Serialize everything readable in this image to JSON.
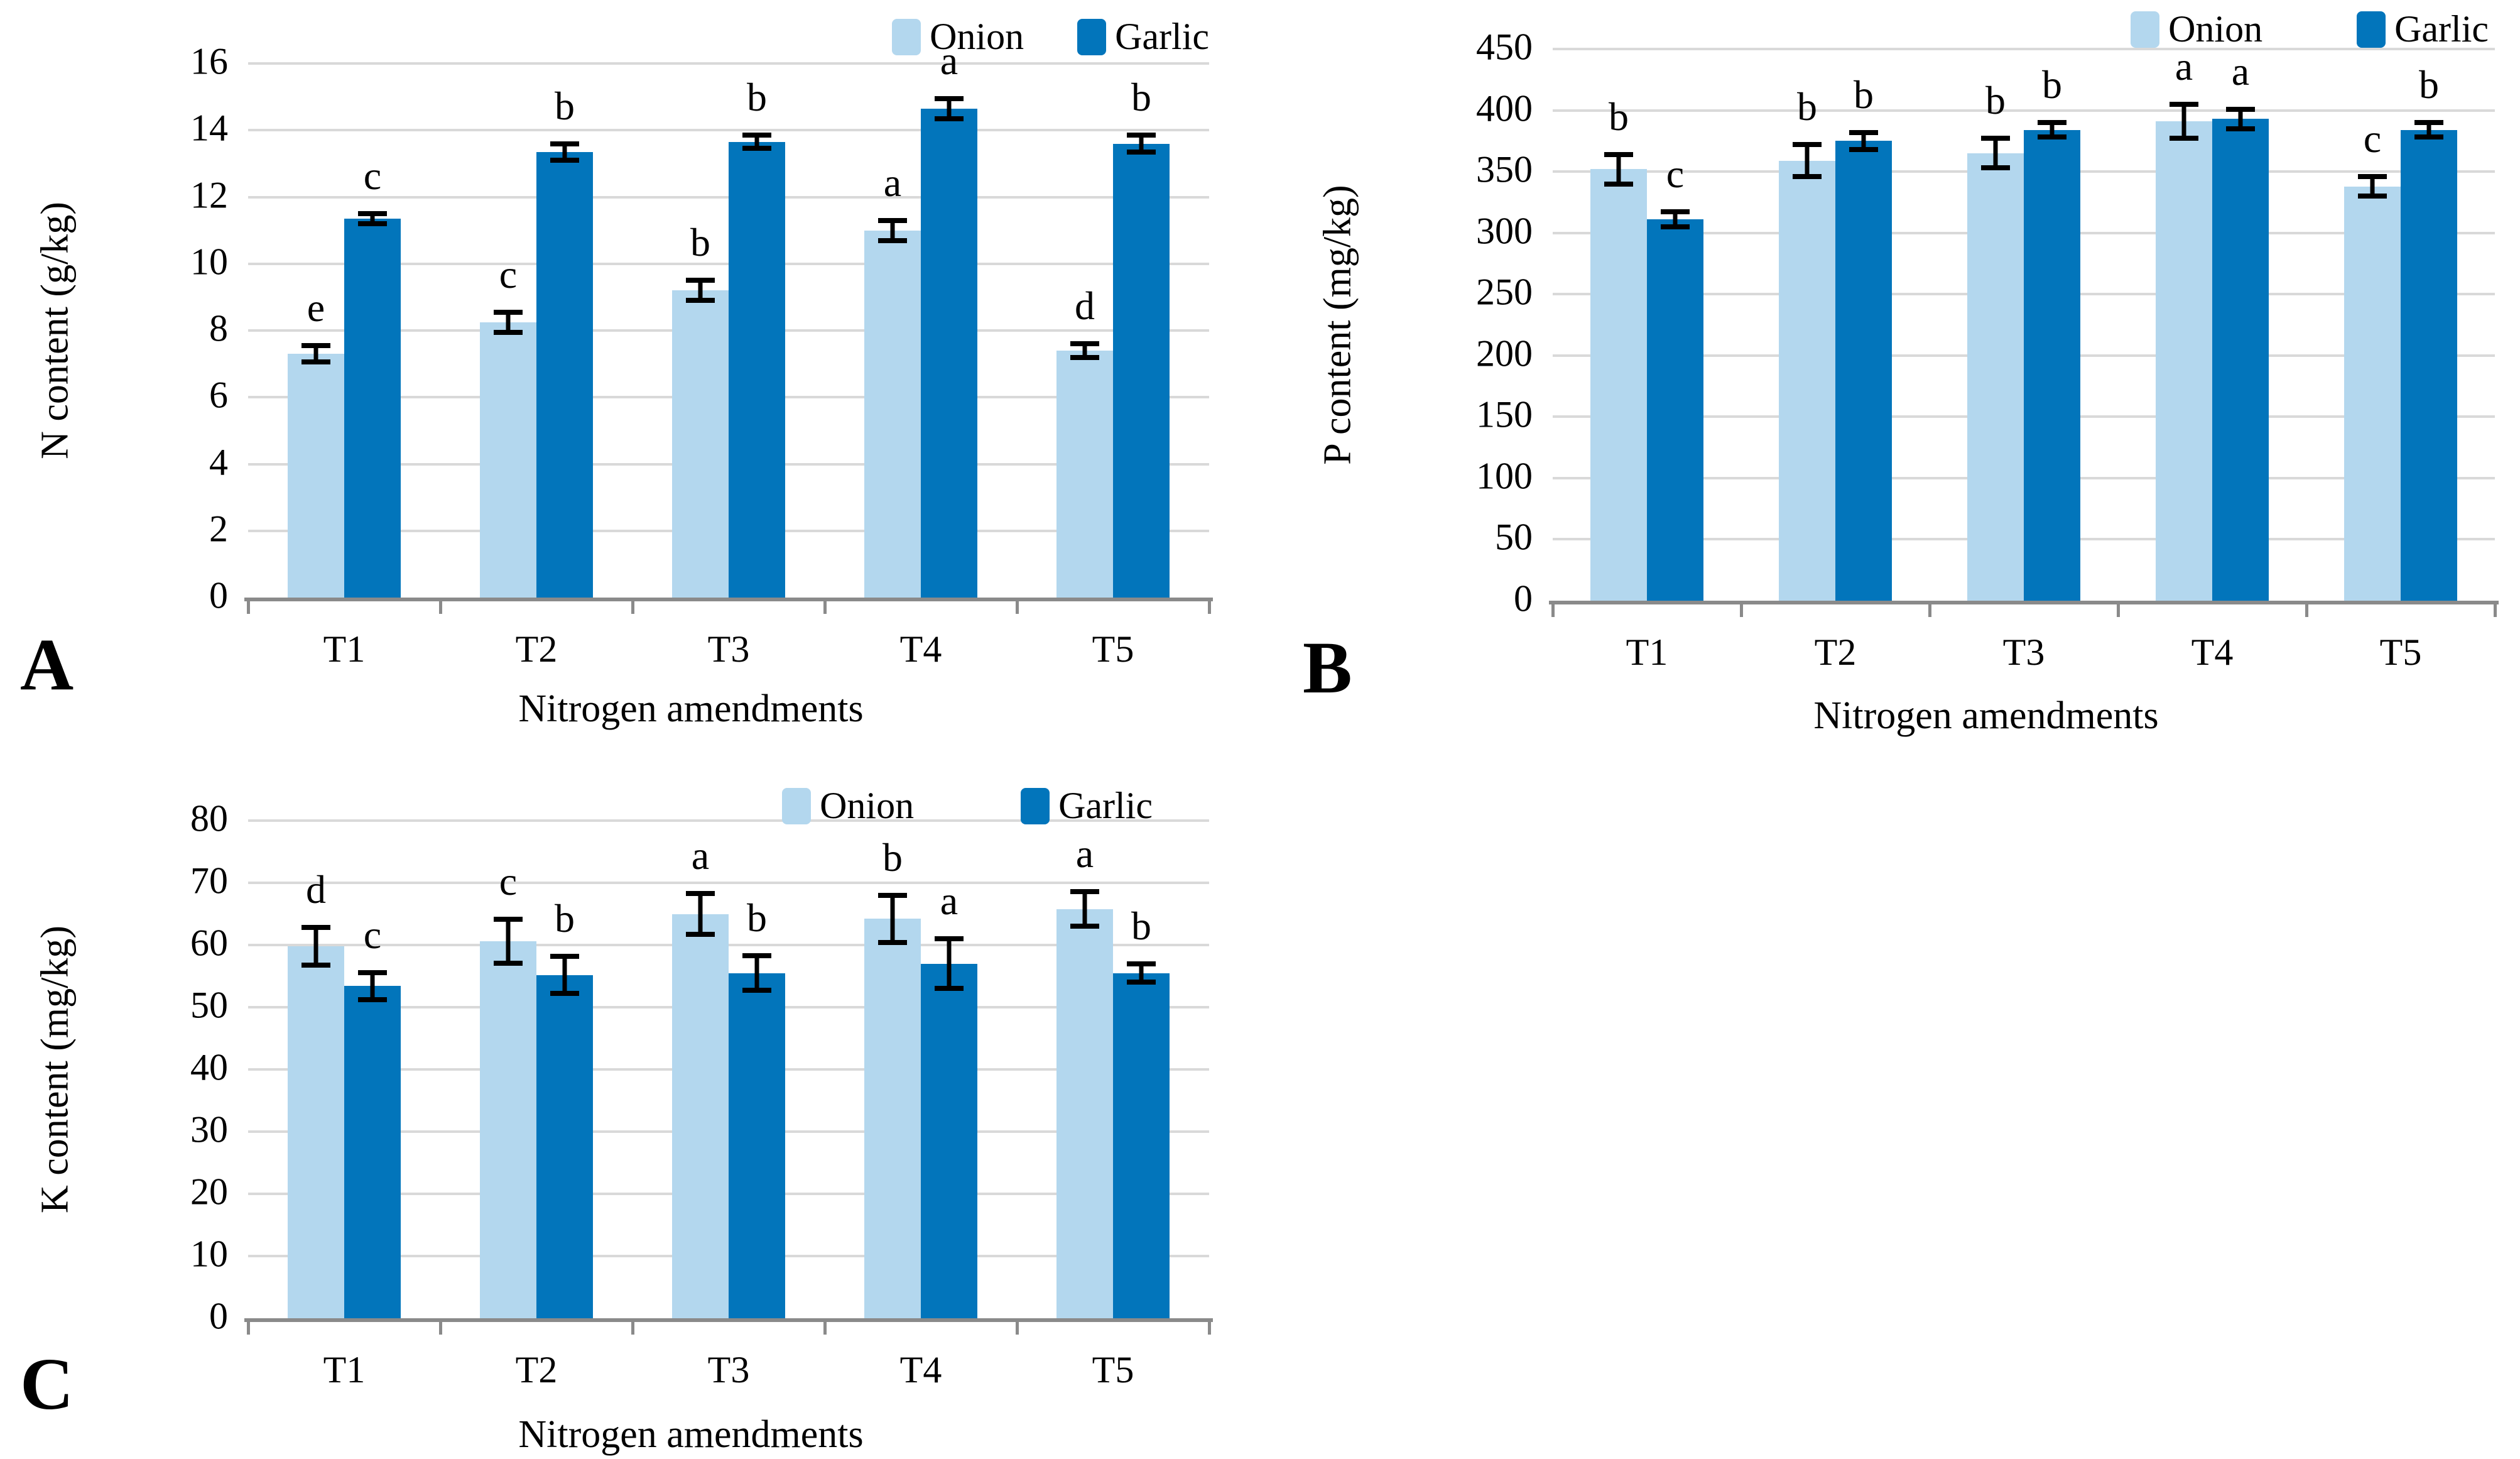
{
  "figure": {
    "x_axis_title": "Nitrogen amendments",
    "categories": [
      "T1",
      "T2",
      "T3",
      "T4",
      "T5"
    ],
    "series_names": [
      "Onion",
      "Garlic"
    ],
    "colors": {
      "onion": "#B3D7EE",
      "garlic": "#0275BB",
      "gridline": "#D9D9D9",
      "axis_line": "#8A8A8A",
      "error_bar": "#000000",
      "text": "#000000"
    }
  },
  "chart_data": [
    {
      "type": "bar",
      "panel": "A",
      "title": "",
      "xlabel": "Nitrogen amendments",
      "ylabel": "N content (g/kg)",
      "ylim": [
        0,
        16
      ],
      "ytick_step": 2,
      "yticks": [
        0,
        2,
        4,
        6,
        8,
        10,
        12,
        14,
        16
      ],
      "grid": "horizontal",
      "legend_position": "top-right",
      "legend": [
        "Onion",
        "Garlic"
      ],
      "categories": [
        "T1",
        "T2",
        "T3",
        "T4",
        "T5"
      ],
      "series": [
        {
          "name": "Onion",
          "values": [
            7.3,
            8.25,
            9.2,
            11.0,
            7.4
          ],
          "errors": [
            0.25,
            0.3,
            0.3,
            0.3,
            0.2
          ],
          "letters": [
            "e",
            "c",
            "b",
            "a",
            "d"
          ]
        },
        {
          "name": "Garlic",
          "values": [
            11.35,
            13.35,
            13.65,
            14.65,
            13.6
          ],
          "errors": [
            0.15,
            0.25,
            0.2,
            0.3,
            0.25
          ],
          "letters": [
            "c",
            "b",
            "b",
            "a",
            "b"
          ]
        }
      ]
    },
    {
      "type": "bar",
      "panel": "B",
      "title": "",
      "xlabel": "Nitrogen amendments",
      "ylabel": "P content (mg/kg)",
      "ylim": [
        0,
        450
      ],
      "ytick_step": 50,
      "yticks": [
        0,
        50,
        100,
        150,
        200,
        250,
        300,
        350,
        400,
        450
      ],
      "grid": "horizontal",
      "legend_position": "top-right",
      "legend": [
        "Onion",
        "Garlic"
      ],
      "categories": [
        "T1",
        "T2",
        "T3",
        "T4",
        "T5"
      ],
      "series": [
        {
          "name": "Onion",
          "values": [
            352,
            359,
            365,
            391,
            338
          ],
          "errors": [
            12,
            13,
            12,
            14,
            8
          ],
          "letters": [
            "b",
            "b",
            "b",
            "a",
            "c"
          ]
        },
        {
          "name": "Garlic",
          "values": [
            311,
            375,
            384,
            393,
            384
          ],
          "errors": [
            6,
            7,
            6,
            8,
            6
          ],
          "letters": [
            "c",
            "b",
            "b",
            "a",
            "b"
          ]
        }
      ]
    },
    {
      "type": "bar",
      "panel": "C",
      "title": "",
      "xlabel": "Nitrogen amendments",
      "ylabel": "K content (mg/kg)",
      "ylim": [
        0,
        80
      ],
      "ytick_step": 10,
      "yticks": [
        0,
        10,
        20,
        30,
        40,
        50,
        60,
        70,
        80
      ],
      "grid": "horizontal",
      "legend_position": "top-right",
      "legend": [
        "Onion",
        "Garlic"
      ],
      "categories": [
        "T1",
        "T2",
        "T3",
        "T4",
        "T5"
      ],
      "series": [
        {
          "name": "Onion",
          "values": [
            59.8,
            60.6,
            65.0,
            64.2,
            65.8
          ],
          "errors": [
            3.0,
            3.5,
            3.3,
            3.8,
            2.8
          ],
          "letters": [
            "d",
            "c",
            "a",
            "b",
            "a"
          ]
        },
        {
          "name": "Garlic",
          "values": [
            53.4,
            55.2,
            55.5,
            57.0,
            55.5
          ],
          "errors": [
            2.2,
            3.0,
            2.8,
            4.0,
            1.5
          ],
          "letters": [
            "c",
            "b",
            "b",
            "a",
            "b"
          ]
        }
      ]
    }
  ]
}
